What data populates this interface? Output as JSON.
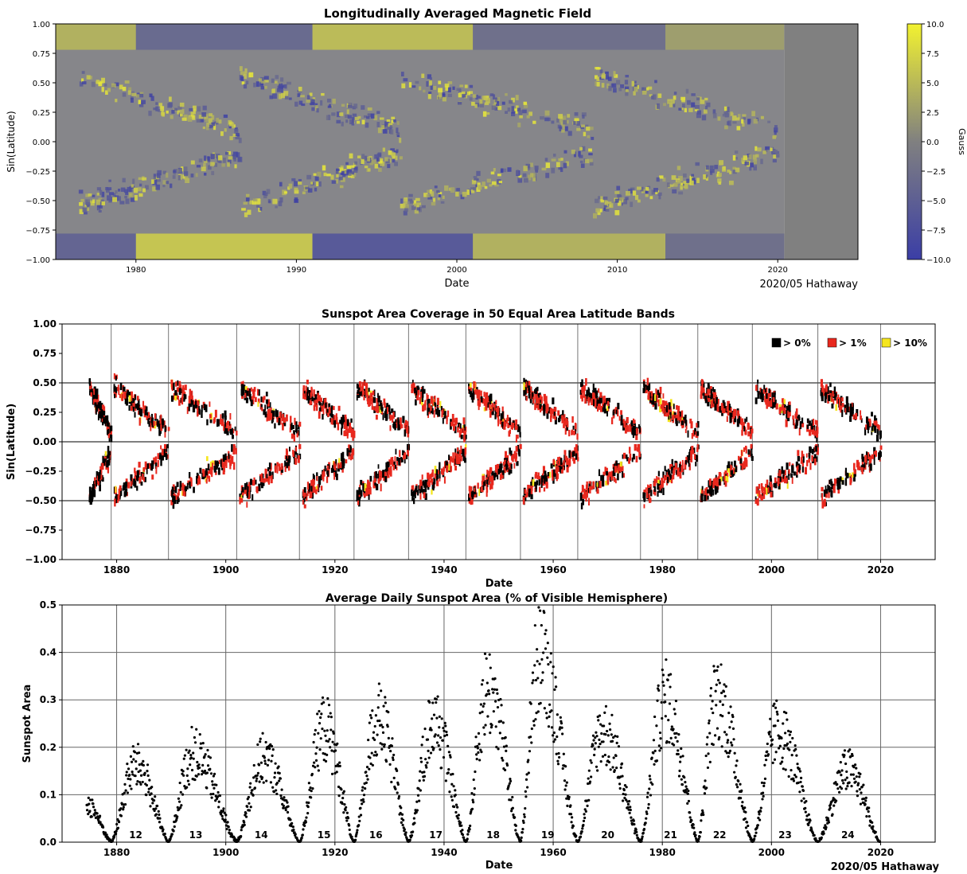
{
  "chart_data": [
    {
      "type": "heatmap",
      "title": "Longitudinally Averaged Magnetic Field",
      "xlabel": "Date",
      "ylabel": "Sin(Latitude)",
      "xlim": [
        1975,
        2025
      ],
      "ylim": [
        -1.0,
        1.0
      ],
      "x_ticks": [
        "1980",
        "1990",
        "2000",
        "2010",
        "2020"
      ],
      "y_ticks": [
        "1.00",
        "0.75",
        "0.50",
        "0.25",
        "0.00",
        "−0.25",
        "−0.50",
        "−0.75",
        "−1.00"
      ],
      "colorbar": {
        "label": "Gauss",
        "range": [
          -10.0,
          10.0
        ],
        "ticks": [
          "10.0",
          "7.5",
          "5.0",
          "2.5",
          "0.0",
          "−2.5",
          "−5.0",
          "−7.5",
          "−10.0"
        ],
        "colors": [
          "#3b3ea6",
          "#808080",
          "#f2f230"
        ]
      },
      "data_end": 2020.4,
      "credit": "2020/05 Hathaway",
      "polar_field": [
        {
          "start": 1975,
          "end": 1980,
          "north": 5,
          "south": -5
        },
        {
          "start": 1980,
          "end": 1991,
          "north": -4,
          "south": 7
        },
        {
          "start": 1991,
          "end": 2001,
          "north": 6,
          "south": -7
        },
        {
          "start": 2001,
          "end": 2013,
          "north": -3,
          "south": 5
        },
        {
          "start": 2013,
          "end": 2020.4,
          "north": 3,
          "south": -3
        }
      ]
    },
    {
      "type": "heatmap",
      "title": "Sunspot Area Coverage in 50 Equal Area Latitude Bands",
      "xlabel": "Date",
      "ylabel": "Sin(Latitude)",
      "xlim": [
        1870,
        2030
      ],
      "ylim": [
        -1.0,
        1.0
      ],
      "x_ticks": [
        "1880",
        "1900",
        "1920",
        "1940",
        "1960",
        "1980",
        "2000",
        "2020"
      ],
      "y_ticks": [
        "1.00",
        "0.75",
        "0.50",
        "0.25",
        "0.00",
        "−0.25",
        "−0.50",
        "−0.75",
        "−1.00"
      ],
      "grid": true,
      "legend": {
        "position": "top-right",
        "entries": [
          {
            "label": "> 0%",
            "color": "#000000"
          },
          {
            "label": "> 1%",
            "color": "#e8281e"
          },
          {
            "label": "> 10%",
            "color": "#f5e61e"
          }
        ]
      },
      "cycle_boundaries": [
        1879,
        1889.5,
        1902,
        1913.5,
        1923.5,
        1933.5,
        1944,
        1954,
        1964.5,
        1976,
        1986.5,
        1996.5,
        2008.5,
        2020
      ],
      "band_lines": [
        0.5,
        0.0,
        -0.5
      ]
    },
    {
      "type": "scatter",
      "title": "Average Daily Sunspot Area (% of Visible Hemisphere)",
      "xlabel": "Date",
      "ylabel": "Sunspot Area",
      "xlim": [
        1870,
        2030
      ],
      "ylim": [
        0.0,
        0.5
      ],
      "x_ticks": [
        "1880",
        "1900",
        "1920",
        "1940",
        "1960",
        "1980",
        "2000",
        "2020"
      ],
      "y_ticks": [
        "0.5",
        "0.4",
        "0.3",
        "0.2",
        "0.1",
        "0.0"
      ],
      "grid": true,
      "credit": "2020/05 Hathaway",
      "cycle_labels": [
        {
          "label": "12",
          "x": 1883.5
        },
        {
          "label": "13",
          "x": 1894.5
        },
        {
          "label": "14",
          "x": 1906.5
        },
        {
          "label": "15",
          "x": 1918
        },
        {
          "label": "16",
          "x": 1927.5
        },
        {
          "label": "17",
          "x": 1938.5
        },
        {
          "label": "18",
          "x": 1949
        },
        {
          "label": "19",
          "x": 1959
        },
        {
          "label": "20",
          "x": 1970
        },
        {
          "label": "21",
          "x": 1981.5
        },
        {
          "label": "22",
          "x": 1990.5
        },
        {
          "label": "23",
          "x": 2002.5
        },
        {
          "label": "24",
          "x": 2014
        }
      ],
      "cycles": [
        {
          "start": 1874.5,
          "end": 1879,
          "peak_year": 1874.5,
          "peak": 0.1
        },
        {
          "start": 1879,
          "end": 1889.5,
          "peak_year": 1883.5,
          "peak": 0.2
        },
        {
          "start": 1889.5,
          "end": 1902,
          "peak_year": 1894,
          "peak": 0.23
        },
        {
          "start": 1902,
          "end": 1913.5,
          "peak_year": 1907,
          "peak": 0.22
        },
        {
          "start": 1913.5,
          "end": 1923.5,
          "peak_year": 1918,
          "peak": 0.3
        },
        {
          "start": 1923.5,
          "end": 1933.5,
          "peak_year": 1928,
          "peak": 0.32
        },
        {
          "start": 1933.5,
          "end": 1944,
          "peak_year": 1938,
          "peak": 0.31
        },
        {
          "start": 1944,
          "end": 1954,
          "peak_year": 1948,
          "peak": 0.4
        },
        {
          "start": 1954,
          "end": 1964.5,
          "peak_year": 1957.5,
          "peak": 0.49
        },
        {
          "start": 1964.5,
          "end": 1976,
          "peak_year": 1969,
          "peak": 0.29
        },
        {
          "start": 1976,
          "end": 1986.5,
          "peak_year": 1980.5,
          "peak": 0.37
        },
        {
          "start": 1986.5,
          "end": 1996.5,
          "peak_year": 1990,
          "peak": 0.38
        },
        {
          "start": 1996.5,
          "end": 2008.5,
          "peak_year": 2001,
          "peak": 0.29
        },
        {
          "start": 2008.5,
          "end": 2019.9,
          "peak_year": 2014,
          "peak": 0.19
        }
      ]
    }
  ]
}
